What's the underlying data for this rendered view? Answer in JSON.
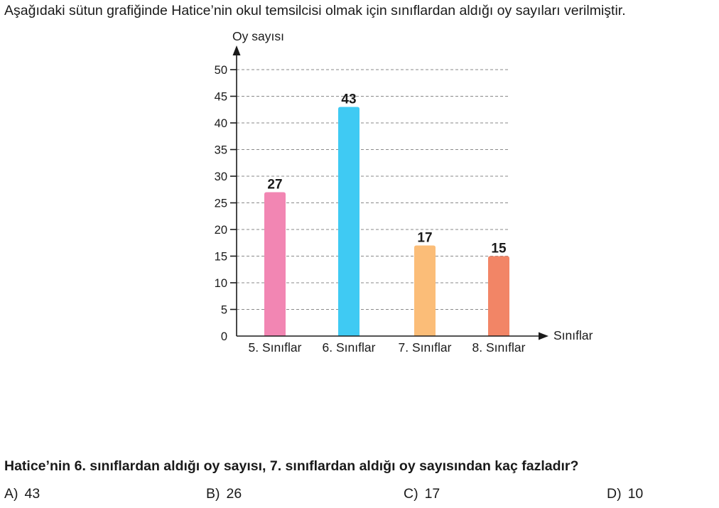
{
  "intro": "Aşağıdaki sütun grafiğinde Hatice’nin okul temsilcisi olmak için sınıflardan aldığı oy sayıları verilmiştir.",
  "chart_data": {
    "type": "bar",
    "ylabel": "Oy sayısı",
    "xlabel": "Sınıflar",
    "categories": [
      "5. Sınıflar",
      "6. Sınıflar",
      "7. Sınıflar",
      "8. Sınıflar"
    ],
    "values": [
      27,
      43,
      17,
      15
    ],
    "value_labels": [
      "27",
      "43",
      "17",
      "15"
    ],
    "colors": [
      "#f286b3",
      "#3fcaf3",
      "#fbbd78",
      "#f28566"
    ],
    "ylim": [
      0,
      50
    ],
    "yticks": [
      0,
      5,
      10,
      15,
      20,
      25,
      30,
      35,
      40,
      45,
      50
    ],
    "grid": "dashed"
  },
  "question": "Hatice’nin 6. sınıflardan aldığı oy sayısı, 7. sınıflardan aldığı oy sayısından kaç fazladır?",
  "choices": [
    {
      "letter": "A)",
      "text": "43"
    },
    {
      "letter": "B)",
      "text": "26"
    },
    {
      "letter": "C)",
      "text": "17"
    },
    {
      "letter": "D)",
      "text": "10"
    }
  ]
}
